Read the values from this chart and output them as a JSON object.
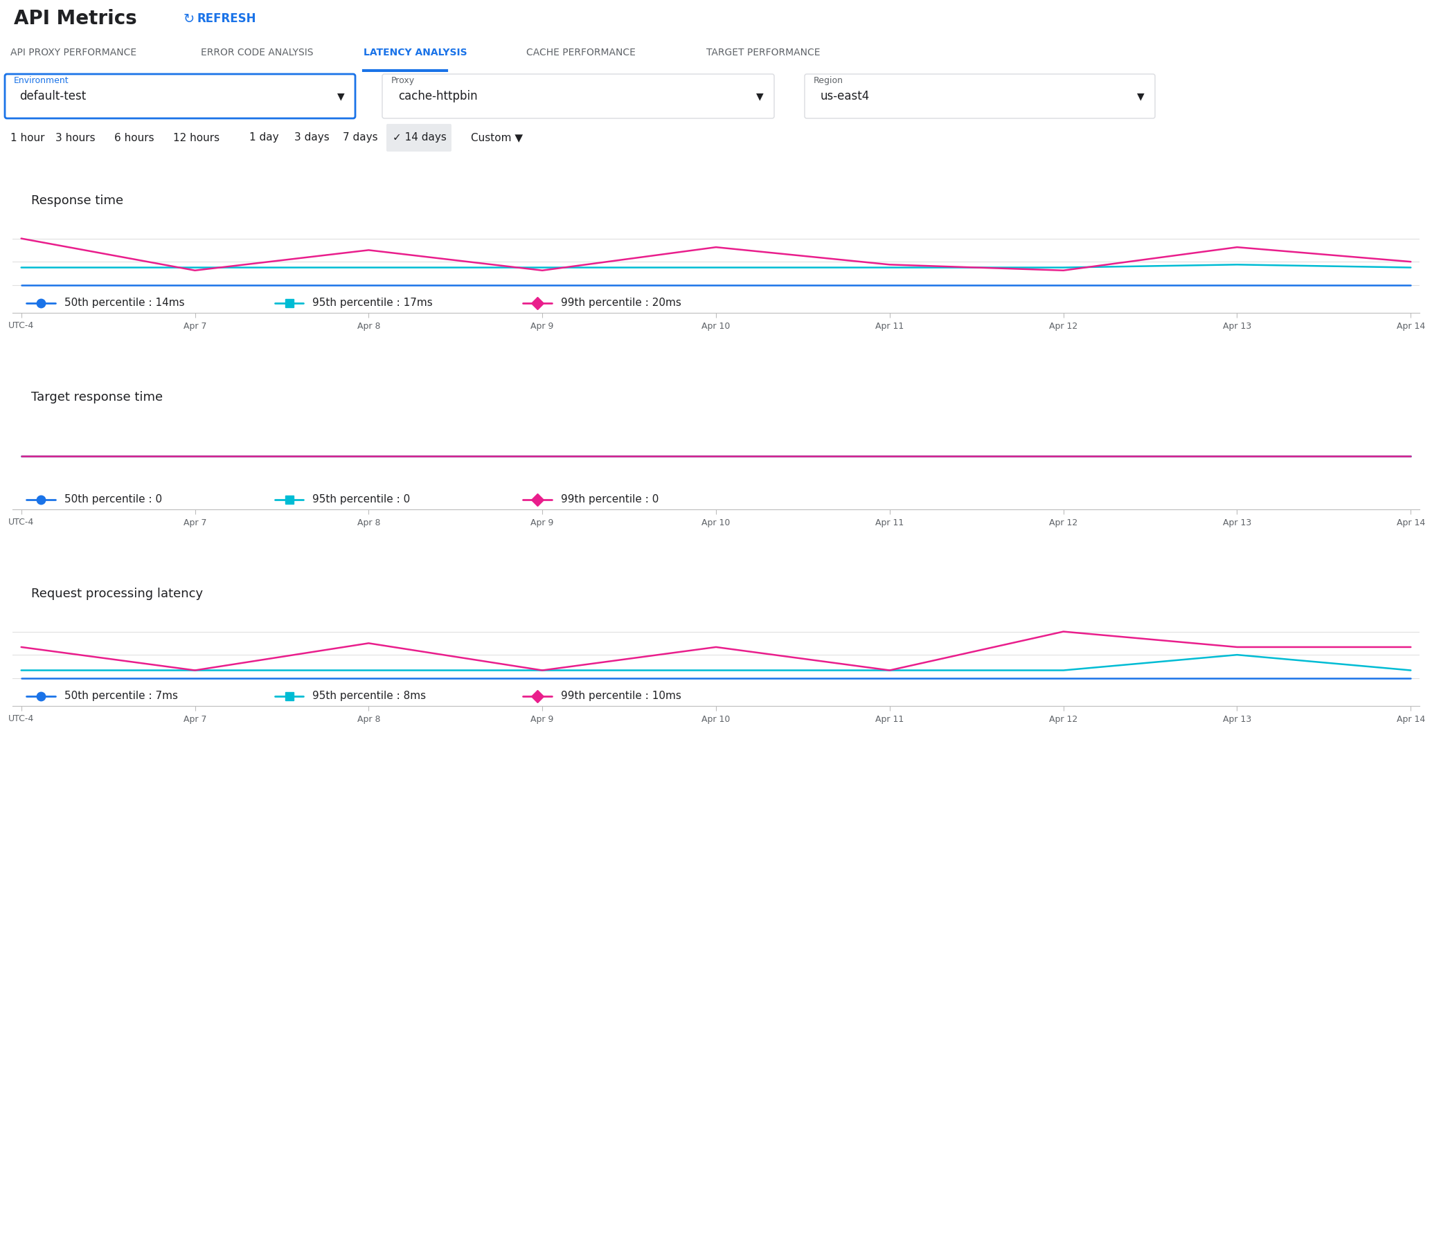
{
  "title": "API Metrics",
  "refresh_text": "REFRESH",
  "tabs": [
    "API PROXY PERFORMANCE",
    "ERROR CODE ANALYSIS",
    "LATENCY ANALYSIS",
    "CACHE PERFORMANCE",
    "TARGET PERFORMANCE"
  ],
  "active_tab_idx": 2,
  "env_label": "Environment",
  "env_value": "default-test",
  "proxy_label": "Proxy",
  "proxy_value": "cache-httpbin",
  "region_label": "Region",
  "region_value": "us-east4",
  "time_buttons": [
    "1 hour",
    "3 hours",
    "6 hours",
    "12 hours",
    "1 day",
    "3 days",
    "7 days",
    "14 days",
    "Custom"
  ],
  "active_time_idx": 7,
  "x_labels": [
    "UTC-4",
    "Apr 7",
    "Apr 8",
    "Apr 9",
    "Apr 10",
    "Apr 11",
    "Apr 12",
    "Apr 13",
    "Apr 14"
  ],
  "x_positions": [
    0,
    1,
    2,
    3,
    4,
    5,
    6,
    7,
    8
  ],
  "chart1_title": "Response time",
  "chart1_p50": [
    14,
    14,
    14,
    14,
    14,
    14,
    14,
    14,
    14
  ],
  "chart1_p95": [
    17,
    17,
    17,
    17,
    17,
    17,
    17,
    17.5,
    17
  ],
  "chart1_p99": [
    22,
    16.5,
    20,
    16.5,
    20.5,
    17.5,
    16.5,
    20.5,
    18
  ],
  "chart1_legend": [
    "50th percentile : 14ms",
    "95th percentile : 17ms",
    "99th percentile : 20ms"
  ],
  "chart2_title": "Target response time",
  "chart2_p50": [
    0,
    0,
    0,
    0,
    0,
    0,
    0,
    0,
    0
  ],
  "chart2_p95": [
    0,
    0,
    0,
    0,
    0,
    0,
    0,
    0,
    0
  ],
  "chart2_p99": [
    0,
    0,
    0,
    0,
    0,
    0,
    0,
    0,
    0
  ],
  "chart2_legend": [
    "50th percentile : 0",
    "95th percentile : 0",
    "99th percentile : 0"
  ],
  "chart3_title": "Request processing latency",
  "chart3_p50": [
    7,
    7,
    7,
    7,
    7,
    7,
    7,
    7,
    7
  ],
  "chart3_p95": [
    8,
    8,
    8,
    8,
    8,
    8,
    8,
    10,
    8
  ],
  "chart3_p99": [
    11,
    8,
    11.5,
    8,
    11,
    8,
    13,
    11,
    11
  ],
  "chart3_legend": [
    "50th percentile : 7ms",
    "95th percentile : 8ms",
    "99th percentile : 10ms"
  ],
  "color_p50": "#1a73e8",
  "color_p95": "#00bcd4",
  "color_p99": "#e91e8c",
  "color_tab_active": "#1a73e8",
  "color_tab_inactive": "#5f6368",
  "color_background": "#ffffff",
  "color_panel_border": "#e8eaed",
  "color_gridline": "#e0e0e0",
  "color_axis_text": "#5f6368",
  "color_title_black": "#202124",
  "color_dropdown_border": "#dadce0",
  "color_env_border": "#1a73e8",
  "color_selected_bg": "#e8eaed",
  "color_separator": "#e0e0e0"
}
